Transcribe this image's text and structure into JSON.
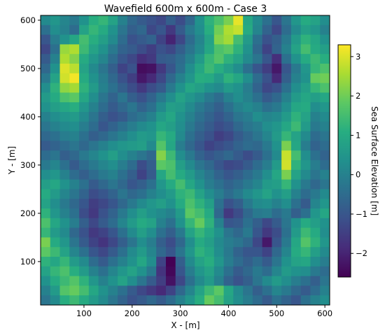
{
  "chart_data": {
    "type": "heatmap",
    "title": "Wavefield 600m x 600m - Case 3",
    "xlabel": "X - [m]",
    "ylabel": "Y - [m]",
    "xlim": [
      10,
      610
    ],
    "ylim": [
      10,
      610
    ],
    "x_ticks": [
      100,
      200,
      300,
      400,
      500,
      600
    ],
    "y_ticks": [
      100,
      200,
      300,
      400,
      500,
      600
    ],
    "grid_cell_size_m": 20,
    "colorbar": {
      "label": "Sea Surface Elevation [m]",
      "range": [
        -2.6,
        3.3
      ],
      "ticks": [
        -2,
        -1,
        0,
        1,
        2,
        3
      ],
      "colormap": "viridis"
    },
    "values_rows_top_to_bottom": [
      [
        0.2,
        0.5,
        0.1,
        -0.2,
        0.4,
        1.1,
        1.3,
        0.8,
        0.0,
        -0.6,
        -0.9,
        -1.1,
        -1.3,
        -0.8,
        -1.2,
        -0.6,
        0.4,
        1.2,
        1.6,
        2.1,
        3.1,
        0.9,
        0.2,
        -0.4,
        -1.0,
        -0.3,
        0.5,
        1.0,
        0.8,
        0.3
      ],
      [
        -0.4,
        0.3,
        0.0,
        -0.5,
        0.8,
        1.3,
        1.0,
        0.4,
        -0.3,
        -0.8,
        -0.6,
        -1.3,
        -1.0,
        -1.6,
        -0.9,
        -0.2,
        0.3,
        1.1,
        2.0,
        2.6,
        2.8,
        1.0,
        0.1,
        -0.7,
        -1.3,
        -0.5,
        0.2,
        0.7,
        0.5,
        0.0
      ],
      [
        -1.0,
        -0.1,
        0.4,
        0.9,
        1.5,
        1.1,
        0.7,
        0.2,
        -0.5,
        -1.1,
        -0.9,
        -0.7,
        -1.4,
        -2.0,
        -1.3,
        -0.5,
        0.1,
        0.8,
        2.2,
        2.5,
        1.5,
        0.6,
        -0.4,
        -1.1,
        -0.8,
        -0.2,
        0.6,
        1.2,
        0.9,
        0.4
      ],
      [
        -1.3,
        -0.4,
        2.4,
        2.6,
        1.4,
        0.8,
        0.4,
        -0.2,
        -0.7,
        -0.9,
        -1.2,
        -1.5,
        -1.1,
        -1.3,
        -0.8,
        -0.3,
        0.2,
        0.9,
        1.6,
        1.8,
        1.2,
        0.4,
        -0.6,
        -1.4,
        -0.7,
        0.0,
        0.8,
        1.5,
        1.0,
        0.7
      ],
      [
        -0.9,
        0.0,
        2.6,
        2.2,
        1.0,
        0.5,
        0.1,
        -0.5,
        -1.0,
        -1.3,
        -1.8,
        -1.6,
        -0.9,
        -0.8,
        -0.5,
        0.0,
        0.6,
        1.3,
        1.7,
        1.2,
        0.8,
        0.2,
        -0.3,
        -1.0,
        -1.8,
        -0.4,
        0.4,
        1.0,
        1.4,
        1.1
      ],
      [
        -0.6,
        0.4,
        3.0,
        2.7,
        0.8,
        0.2,
        -0.3,
        -0.8,
        -1.4,
        -1.1,
        -2.4,
        -2.3,
        -1.6,
        -1.0,
        -0.4,
        0.3,
        0.9,
        1.4,
        1.1,
        0.7,
        0.3,
        -0.4,
        -1.0,
        -1.5,
        -2.2,
        -1.0,
        -0.2,
        0.5,
        1.3,
        1.6
      ],
      [
        -0.2,
        0.8,
        2.9,
        3.2,
        1.0,
        0.4,
        -0.1,
        -0.6,
        -1.1,
        -1.5,
        -2.2,
        -1.9,
        -1.3,
        -0.6,
        0.0,
        0.5,
        1.1,
        1.0,
        0.6,
        1.2,
        0.9,
        0.3,
        -0.5,
        -1.1,
        -1.9,
        -0.8,
        0.0,
        0.4,
        1.9,
        2.0
      ],
      [
        0.3,
        1.2,
        2.3,
        2.5,
        1.2,
        0.6,
        0.0,
        -0.4,
        -0.8,
        -1.2,
        -1.6,
        -1.2,
        -0.9,
        -0.2,
        0.4,
        0.9,
        0.7,
        0.4,
        0.2,
        0.6,
        0.4,
        -0.1,
        -0.7,
        -1.3,
        -1.1,
        -0.4,
        0.3,
        0.7,
        1.3,
        1.6
      ],
      [
        0.6,
        1.0,
        1.6,
        1.8,
        0.9,
        0.3,
        -0.3,
        -0.7,
        -0.3,
        -0.8,
        -1.1,
        -0.7,
        -0.2,
        0.3,
        0.8,
        0.5,
        0.2,
        -0.2,
        -0.5,
        0.0,
        0.3,
        0.0,
        -0.4,
        -0.9,
        -0.6,
        0.0,
        0.6,
        0.9,
        0.7,
        0.9
      ],
      [
        0.4,
        0.7,
        0.9,
        1.1,
        0.5,
        0.0,
        -0.5,
        -0.9,
        -0.6,
        -0.3,
        -0.7,
        -0.4,
        0.2,
        0.7,
        0.6,
        0.2,
        -0.2,
        -0.5,
        -0.8,
        -0.4,
        0.0,
        0.2,
        0.0,
        -0.4,
        -0.2,
        0.3,
        0.9,
        1.0,
        0.3,
        0.5
      ],
      [
        0.0,
        0.3,
        0.5,
        0.6,
        0.2,
        -0.3,
        -0.8,
        -1.1,
        -0.9,
        -0.5,
        -0.3,
        0.0,
        0.6,
        0.9,
        0.4,
        0.0,
        -0.4,
        -0.7,
        -1.0,
        -0.7,
        -0.3,
        -0.1,
        0.3,
        0.1,
        0.2,
        0.6,
        1.2,
        0.8,
        0.0,
        0.2
      ],
      [
        -0.3,
        0.0,
        0.2,
        0.3,
        -0.1,
        -0.5,
        -1.0,
        -0.7,
        -0.4,
        -0.1,
        0.2,
        0.4,
        0.9,
        0.7,
        0.3,
        -0.2,
        -0.6,
        -0.9,
        -1.2,
        -1.0,
        -0.6,
        -0.3,
        -0.1,
        0.3,
        0.5,
        0.9,
        1.4,
        0.6,
        -0.2,
        0.0
      ],
      [
        -0.6,
        -0.4,
        -0.1,
        0.0,
        -0.4,
        -0.8,
        -0.6,
        -0.3,
        0.0,
        0.3,
        0.6,
        0.5,
        1.3,
        1.0,
        0.2,
        -0.4,
        -0.8,
        -1.1,
        -1.5,
        -1.3,
        -0.9,
        -0.6,
        -0.3,
        0.1,
        0.6,
        1.3,
        0.8,
        0.2,
        -0.5,
        -0.3
      ],
      [
        -0.9,
        -0.7,
        -0.5,
        -0.3,
        -0.6,
        -0.3,
        0.0,
        0.3,
        0.5,
        0.6,
        0.7,
        0.2,
        1.7,
        0.9,
        -0.1,
        -0.6,
        -1.0,
        -1.4,
        -1.2,
        -1.0,
        -0.7,
        -0.5,
        -0.6,
        -0.2,
        0.4,
        2.1,
        0.9,
        -0.1,
        -0.7,
        -0.5
      ],
      [
        -0.5,
        -0.3,
        -0.8,
        -0.6,
        -0.2,
        0.1,
        0.4,
        0.7,
        0.3,
        0.0,
        -0.3,
        -0.6,
        2.2,
        1.4,
        0.3,
        -0.2,
        -0.7,
        -1.0,
        -0.8,
        -0.6,
        -0.9,
        -1.2,
        -0.9,
        -0.4,
        0.2,
        2.8,
        1.5,
        0.3,
        -0.4,
        -0.7
      ],
      [
        -0.2,
        0.1,
        -0.4,
        -0.9,
        -0.5,
        -0.2,
        0.1,
        0.3,
        -0.1,
        -0.5,
        -1.2,
        -0.8,
        1.8,
        1.6,
        0.7,
        0.2,
        -0.3,
        -0.6,
        -1.0,
        -1.3,
        -1.2,
        -0.9,
        -0.5,
        -0.1,
        0.6,
        2.9,
        1.2,
        0.5,
        -0.1,
        -0.5
      ],
      [
        0.3,
        0.5,
        0.0,
        -0.5,
        -0.8,
        -0.5,
        -0.2,
        0.0,
        -0.4,
        -0.8,
        -1.4,
        -0.9,
        0.9,
        1.5,
        1.0,
        0.6,
        0.1,
        -0.3,
        -0.7,
        -1.0,
        -0.8,
        -0.5,
        -0.2,
        0.3,
        0.9,
        2.1,
        0.8,
        0.2,
        -0.3,
        0.0
      ],
      [
        0.7,
        0.9,
        0.4,
        0.0,
        -0.4,
        -0.9,
        -0.6,
        -0.3,
        -0.6,
        -1.0,
        -0.8,
        -0.4,
        0.5,
        1.0,
        1.5,
        0.9,
        0.4,
        -0.1,
        -0.4,
        -0.7,
        -0.5,
        -0.2,
        0.1,
        0.6,
        0.7,
        1.3,
        0.4,
        -0.2,
        -0.6,
        -0.3
      ],
      [
        1.0,
        0.6,
        0.1,
        -0.3,
        -0.7,
        -1.2,
        -1.0,
        -0.7,
        -0.3,
        -0.6,
        -0.4,
        0.0,
        0.3,
        0.6,
        1.2,
        1.4,
        0.8,
        0.3,
        -0.1,
        -0.5,
        -0.2,
        0.2,
        0.5,
        0.8,
        0.4,
        0.7,
        0.0,
        -0.5,
        -0.2,
        0.2
      ],
      [
        0.8,
        0.3,
        -0.2,
        -0.6,
        -1.0,
        -1.5,
        -1.3,
        -1.0,
        -0.6,
        -0.2,
        0.2,
        0.5,
        0.7,
        0.4,
        1.0,
        1.6,
        1.2,
        0.7,
        -0.4,
        -1.1,
        -0.8,
        -0.2,
        0.2,
        0.3,
        0.0,
        0.3,
        -0.4,
        -0.9,
        0.1,
        0.5
      ],
      [
        1.2,
        0.5,
        0.0,
        -0.4,
        -1.2,
        -1.6,
        -1.1,
        -0.7,
        -0.2,
        0.3,
        0.7,
        0.4,
        0.2,
        0.0,
        0.6,
        1.8,
        1.5,
        1.0,
        -0.6,
        -1.6,
        -1.2,
        -0.6,
        -0.2,
        -0.1,
        -0.5,
        -0.2,
        -0.8,
        -0.4,
        0.5,
        0.9
      ],
      [
        1.6,
        0.9,
        0.4,
        -0.1,
        -0.8,
        -1.3,
        -0.9,
        -0.5,
        0.1,
        0.6,
        1.0,
        0.8,
        0.0,
        -0.4,
        0.4,
        1.3,
        1.9,
        1.2,
        0.0,
        -1.0,
        -0.9,
        -0.4,
        -0.8,
        -1.3,
        -0.9,
        -0.3,
        0.4,
        1.0,
        0.7,
        0.4
      ],
      [
        1.3,
        0.6,
        0.2,
        -0.6,
        -1.1,
        -1.6,
        -1.4,
        -1.0,
        -0.4,
        0.2,
        0.7,
        0.3,
        -0.4,
        -0.8,
        -0.2,
        0.8,
        1.3,
        0.9,
        0.4,
        -0.3,
        -0.6,
        -0.2,
        -1.0,
        -1.6,
        -1.2,
        -0.4,
        0.6,
        1.4,
        1.0,
        0.3
      ],
      [
        2.1,
        1.0,
        0.5,
        -0.3,
        -0.9,
        -1.4,
        -1.7,
        -1.3,
        -0.8,
        -0.3,
        0.3,
        -0.1,
        -0.8,
        -1.2,
        -0.6,
        0.3,
        1.0,
        0.7,
        0.2,
        -0.1,
        -0.3,
        -0.6,
        -1.3,
        -2.2,
        -1.0,
        -0.2,
        0.9,
        1.7,
        1.2,
        0.5
      ],
      [
        1.8,
        1.4,
        0.8,
        0.1,
        -0.4,
        -1.0,
        -1.3,
        -0.9,
        -0.4,
        0.2,
        0.6,
        0.1,
        -0.6,
        -1.0,
        -0.3,
        0.5,
        1.2,
        0.9,
        0.3,
        -0.2,
        -0.7,
        -1.0,
        -1.0,
        -1.4,
        -0.6,
        0.1,
        1.0,
        1.3,
        0.7,
        0.2
      ],
      [
        1.2,
        0.9,
        1.3,
        0.6,
        0.2,
        -0.5,
        -0.9,
        -0.4,
        0.0,
        0.4,
        0.9,
        0.3,
        -1.4,
        -2.6,
        -0.8,
        0.2,
        0.8,
        1.1,
        0.5,
        -0.1,
        -0.5,
        -0.8,
        -0.5,
        -0.9,
        -0.3,
        0.4,
        0.8,
        0.9,
        0.3,
        -0.1
      ],
      [
        0.8,
        1.3,
        1.6,
        1.1,
        0.6,
        0.0,
        -0.4,
        0.1,
        0.5,
        0.8,
        0.4,
        -0.2,
        -1.7,
        -2.5,
        -1.0,
        -0.1,
        0.5,
        0.8,
        0.2,
        -0.4,
        -0.9,
        -0.6,
        -0.2,
        -0.5,
        0.1,
        0.6,
        0.4,
        0.3,
        -0.2,
        -0.5
      ],
      [
        0.4,
        1.0,
        1.4,
        1.7,
        1.2,
        0.5,
        0.0,
        0.4,
        0.8,
        0.3,
        -0.3,
        -0.9,
        -1.5,
        -2.3,
        -1.3,
        -0.4,
        0.2,
        0.6,
        0.0,
        -0.7,
        -1.1,
        -0.8,
        -0.3,
        0.2,
        0.6,
        0.3,
        -0.1,
        -0.4,
        -0.8,
        -0.3
      ],
      [
        0.0,
        0.6,
        1.7,
        1.9,
        1.5,
        0.9,
        0.4,
        0.0,
        -0.4,
        -0.9,
        -1.3,
        -1.6,
        -1.9,
        -1.4,
        -0.6,
        0.1,
        0.8,
        1.4,
        1.8,
        0.9,
        0.2,
        -0.3,
        -0.8,
        -0.4,
        0.1,
        -0.2,
        -0.6,
        -0.9,
        -0.5,
        0.0
      ],
      [
        -0.3,
        0.2,
        1.1,
        1.4,
        1.0,
        0.6,
        0.2,
        -0.3,
        -0.7,
        -1.1,
        -0.9,
        -0.6,
        -0.9,
        -0.5,
        0.0,
        0.5,
        1.1,
        1.9,
        1.5,
        0.8,
        0.3,
        -0.1,
        -0.5,
        -0.9,
        -0.4,
        -0.7,
        -1.0,
        -0.4,
        0.0,
        0.3
      ]
    ]
  }
}
